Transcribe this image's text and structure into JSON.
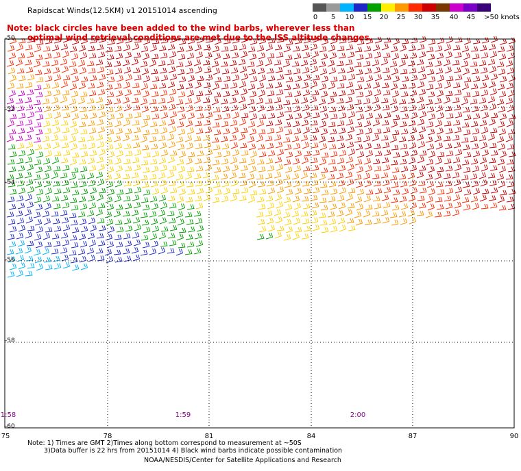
{
  "title": "Rapidscat Winds(12.5KM) v1 20151014 ascending",
  "note_line1": "Note: black circles have been added to the wind barbs, wherever less than",
  "note_line2": "optimal wind retrieval conditions are met due to the ISS altitude changes.",
  "colorbar": {
    "labels": [
      "0",
      "5",
      "10",
      "15",
      "20",
      "25",
      "30",
      "35",
      "40",
      "45",
      ">50 knots"
    ],
    "colors": [
      "#555555",
      "#9a9a9a",
      "#00b4ff",
      "#1e28c8",
      "#00a000",
      "#ffee00",
      "#ff9900",
      "#ff2a00",
      "#cc0000",
      "#7a3800",
      "#cc00cc",
      "#7a00c8",
      "#3a007a"
    ]
  },
  "lat_labels": [
    "-50",
    "-52",
    "-54",
    "-56",
    "-58",
    "-60"
  ],
  "lon_labels": [
    "75",
    "78",
    "81",
    "84",
    "87",
    "90"
  ],
  "time_labels": [
    "1:58",
    "1:59",
    "2:00"
  ],
  "footer": {
    "line1": "Note: 1) Times are GMT 2)Times along bottom correspond to measurement at ~50S",
    "line2": "3)Data buffer is 22 hrs from 20151014 4) Black wind barbs indicate possible contamination",
    "line3": "NOAA/NESDIS/Center for Satellite Applications and Research"
  }
}
